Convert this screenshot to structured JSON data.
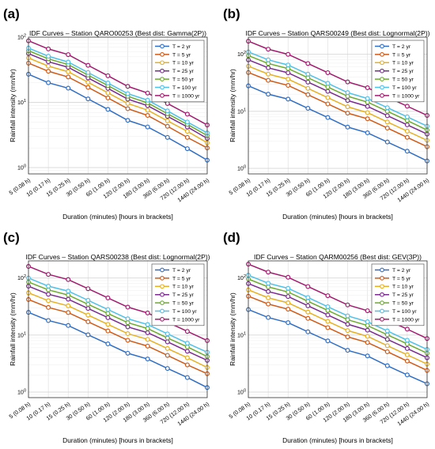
{
  "chart_data": [
    {
      "panel": "(a)",
      "type": "line",
      "title": "IDF Curves – Station QARO00253  (Best dist: Gamma(2P))",
      "xlabel": "Duration (minutes)  [hours in brackets]",
      "ylabel": "Rainfall intensity (mm/hr)",
      "yscale": "log",
      "ylim": [
        0.8,
        100
      ],
      "yticks": [
        "10^0",
        "10^1",
        "10^2"
      ],
      "grid": true,
      "legend_position": "top-right",
      "categories": [
        "5 (0.08 h)",
        "10 (0.17 h)",
        "15 (0.25 h)",
        "30 (0.50 h)",
        "60 (1.00 h)",
        "120 (2.00 h)",
        "180 (3.00 h)",
        "360 (6.00 h)",
        "720 (12.00 h)",
        "1440 (24.00 h)"
      ],
      "series": [
        {
          "name": "T = 2 yr",
          "color": "#2f6ec4",
          "values": [
            27,
            20,
            16.5,
            11.3,
            7.8,
            5.3,
            4.2,
            2.9,
            1.95,
            1.3
          ]
        },
        {
          "name": "T = 5 yr",
          "color": "#d05a16",
          "values": [
            40,
            30,
            24.5,
            17,
            11.7,
            8,
            6.3,
            4.3,
            2.9,
            2.0
          ]
        },
        {
          "name": "T = 10 yr",
          "color": "#e6b022",
          "values": [
            48,
            36,
            29.5,
            20.3,
            14,
            9.6,
            7.6,
            5.2,
            3.6,
            2.4
          ]
        },
        {
          "name": "T = 25 yr",
          "color": "#7a2a8e",
          "values": [
            56,
            42,
            34.5,
            23.7,
            16.4,
            11.2,
            8.9,
            6.1,
            4.2,
            2.8
          ]
        },
        {
          "name": "T = 50 yr",
          "color": "#6cab2e",
          "values": [
            62,
            46.5,
            38,
            26.2,
            18.1,
            12.4,
            9.8,
            6.7,
            4.6,
            3.1
          ]
        },
        {
          "name": "T = 100 yr",
          "color": "#4fc0e8",
          "values": [
            68,
            51,
            41.5,
            28.7,
            19.8,
            13.6,
            10.8,
            7.4,
            5.0,
            3.4
          ]
        },
        {
          "name": "T = 1000 yr",
          "color": "#a21a6e",
          "values": [
            88,
            66,
            54,
            37,
            25.6,
            17.6,
            13.9,
            9.6,
            6.6,
            4.5
          ]
        }
      ]
    },
    {
      "panel": "(b)",
      "type": "line",
      "title": "IDF Curves – Station QARS00249  (Best dist: Lognormal(2P))",
      "xlabel": "Duration (minutes)  [hours in brackets]",
      "ylabel": "Rainfall intensity (mm/hr)",
      "yscale": "log",
      "ylim": [
        0.8,
        200
      ],
      "yticks": [
        "10^0",
        "10^1",
        "10^2"
      ],
      "grid": true,
      "legend_position": "top-right",
      "categories": [
        "5 (0.08 h)",
        "10 (0.17 h)",
        "15 (0.25 h)",
        "30 (0.50 h)",
        "60 (1.00 h)",
        "120 (2.00 h)",
        "180 (3.00 h)",
        "360 (6.00 h)",
        "720 (12.00 h)",
        "1440 (24.00 h)"
      ],
      "series": [
        {
          "name": "T = 2 yr",
          "color": "#2f6ec4",
          "values": [
            28,
            20,
            16.4,
            11.3,
            7.8,
            5.3,
            4.2,
            2.9,
            2.0,
            1.35
          ]
        },
        {
          "name": "T = 5 yr",
          "color": "#d05a16",
          "values": [
            48,
            35,
            28.5,
            19.6,
            13.5,
            9.3,
            7.4,
            5.1,
            3.5,
            2.4
          ]
        },
        {
          "name": "T = 10 yr",
          "color": "#e6b022",
          "values": [
            62,
            45,
            36.7,
            25.3,
            17.4,
            12,
            9.5,
            6.5,
            4.5,
            3.1
          ]
        },
        {
          "name": "T = 25 yr",
          "color": "#7a2a8e",
          "values": [
            80,
            58,
            47.4,
            32.6,
            22.5,
            15.5,
            12.2,
            8.4,
            5.8,
            4.0
          ]
        },
        {
          "name": "T = 50 yr",
          "color": "#6cab2e",
          "values": [
            95,
            69,
            56.3,
            38.8,
            26.7,
            18.4,
            14.5,
            10,
            6.9,
            4.7
          ]
        },
        {
          "name": "T = 100 yr",
          "color": "#4fc0e8",
          "values": [
            110,
            80,
            65,
            44.9,
            31,
            21.3,
            16.8,
            11.6,
            8.0,
            5.5
          ]
        },
        {
          "name": "T = 1000 yr",
          "color": "#a21a6e",
          "values": [
            170,
            123,
            100,
            69,
            47.6,
            32.8,
            25.9,
            17.8,
            12.3,
            8.5
          ]
        }
      ]
    },
    {
      "panel": "(c)",
      "type": "line",
      "title": "IDF Curves – Station QARS00238  (Best dist: Lognormal(2P))",
      "xlabel": "Duration (minutes)  [hours in brackets]",
      "ylabel": "Rainfall intensity (mm/hr)",
      "yscale": "log",
      "ylim": [
        0.8,
        200
      ],
      "yticks": [
        "10^0",
        "10^1",
        "10^2"
      ],
      "grid": true,
      "legend_position": "top-right",
      "categories": [
        "5 (0.08 h)",
        "10 (0.17 h)",
        "15 (0.25 h)",
        "30 (0.50 h)",
        "60 (1.00 h)",
        "120 (2.00 h)",
        "180 (3.00 h)",
        "360 (6.00 h)",
        "720 (12.00 h)",
        "1440 (24.00 h)"
      ],
      "series": [
        {
          "name": "T = 2 yr",
          "color": "#2f6ec4",
          "values": [
            25,
            18,
            14.7,
            10.1,
            7.0,
            4.8,
            3.8,
            2.6,
            1.8,
            1.2
          ]
        },
        {
          "name": "T = 5 yr",
          "color": "#d05a16",
          "values": [
            42,
            30.5,
            24.8,
            17.1,
            11.8,
            8.1,
            6.4,
            4.4,
            3.0,
            2.1
          ]
        },
        {
          "name": "T = 10 yr",
          "color": "#e6b022",
          "values": [
            55,
            40,
            32.5,
            22.4,
            15.4,
            10.6,
            8.4,
            5.8,
            4.0,
            2.7
          ]
        },
        {
          "name": "T = 25 yr",
          "color": "#7a2a8e",
          "values": [
            72,
            52,
            42.5,
            29.3,
            20.2,
            13.9,
            11,
            7.6,
            5.2,
            3.6
          ]
        },
        {
          "name": "T = 50 yr",
          "color": "#6cab2e",
          "values": [
            85,
            62,
            50.3,
            34.6,
            23.9,
            16.5,
            13,
            8.9,
            6.2,
            4.2
          ]
        },
        {
          "name": "T = 100 yr",
          "color": "#4fc0e8",
          "values": [
            100,
            72,
            59,
            40.7,
            28,
            19.3,
            15.3,
            10.5,
            7.2,
            5.0
          ]
        },
        {
          "name": "T = 1000 yr",
          "color": "#a21a6e",
          "values": [
            160,
            116,
            94,
            65,
            44.8,
            30.9,
            24.4,
            16.8,
            11.6,
            8.0
          ]
        }
      ]
    },
    {
      "panel": "(d)",
      "type": "line",
      "title": "IDF Curves – Station QARM00256  (Best dist: GEV(3P))",
      "xlabel": "Duration (minutes)  [hours in brackets]",
      "ylabel": "Rainfall intensity (mm/hr)",
      "yscale": "log",
      "ylim": [
        0.8,
        200
      ],
      "yticks": [
        "10^0",
        "10^1",
        "10^2"
      ],
      "grid": true,
      "legend_position": "top-right",
      "categories": [
        "5 (0.08 h)",
        "10 (0.17 h)",
        "15 (0.25 h)",
        "30 (0.50 h)",
        "60 (1.00 h)",
        "120 (2.00 h)",
        "180 (3.00 h)",
        "360 (6.00 h)",
        "720 (12.00 h)",
        "1440 (24.00 h)"
      ],
      "series": [
        {
          "name": "T = 2 yr",
          "color": "#2f6ec4",
          "values": [
            28,
            20.3,
            16.5,
            11.4,
            7.9,
            5.4,
            4.3,
            2.9,
            2.0,
            1.4
          ]
        },
        {
          "name": "T = 5 yr",
          "color": "#d05a16",
          "values": [
            48,
            35,
            28.4,
            19.6,
            13.5,
            9.3,
            7.4,
            5.1,
            3.5,
            2.4
          ]
        },
        {
          "name": "T = 10 yr",
          "color": "#e6b022",
          "values": [
            62,
            45,
            36.7,
            25.3,
            17.4,
            12,
            9.5,
            6.5,
            4.5,
            3.1
          ]
        },
        {
          "name": "T = 25 yr",
          "color": "#7a2a8e",
          "values": [
            80,
            58,
            47.4,
            32.6,
            22.5,
            15.5,
            12.2,
            8.4,
            5.8,
            4.0
          ]
        },
        {
          "name": "T = 50 yr",
          "color": "#6cab2e",
          "values": [
            96,
            70,
            56.8,
            39.1,
            27,
            18.6,
            14.7,
            10.1,
            7.0,
            4.8
          ]
        },
        {
          "name": "T = 100 yr",
          "color": "#4fc0e8",
          "values": [
            112,
            81,
            66,
            45.6,
            31.4,
            21.7,
            17.1,
            11.8,
            8.1,
            5.6
          ]
        },
        {
          "name": "T = 1000 yr",
          "color": "#a21a6e",
          "values": [
            175,
            127,
            103,
            71,
            49,
            33.8,
            26.7,
            18.4,
            12.7,
            8.7
          ]
        }
      ]
    }
  ]
}
